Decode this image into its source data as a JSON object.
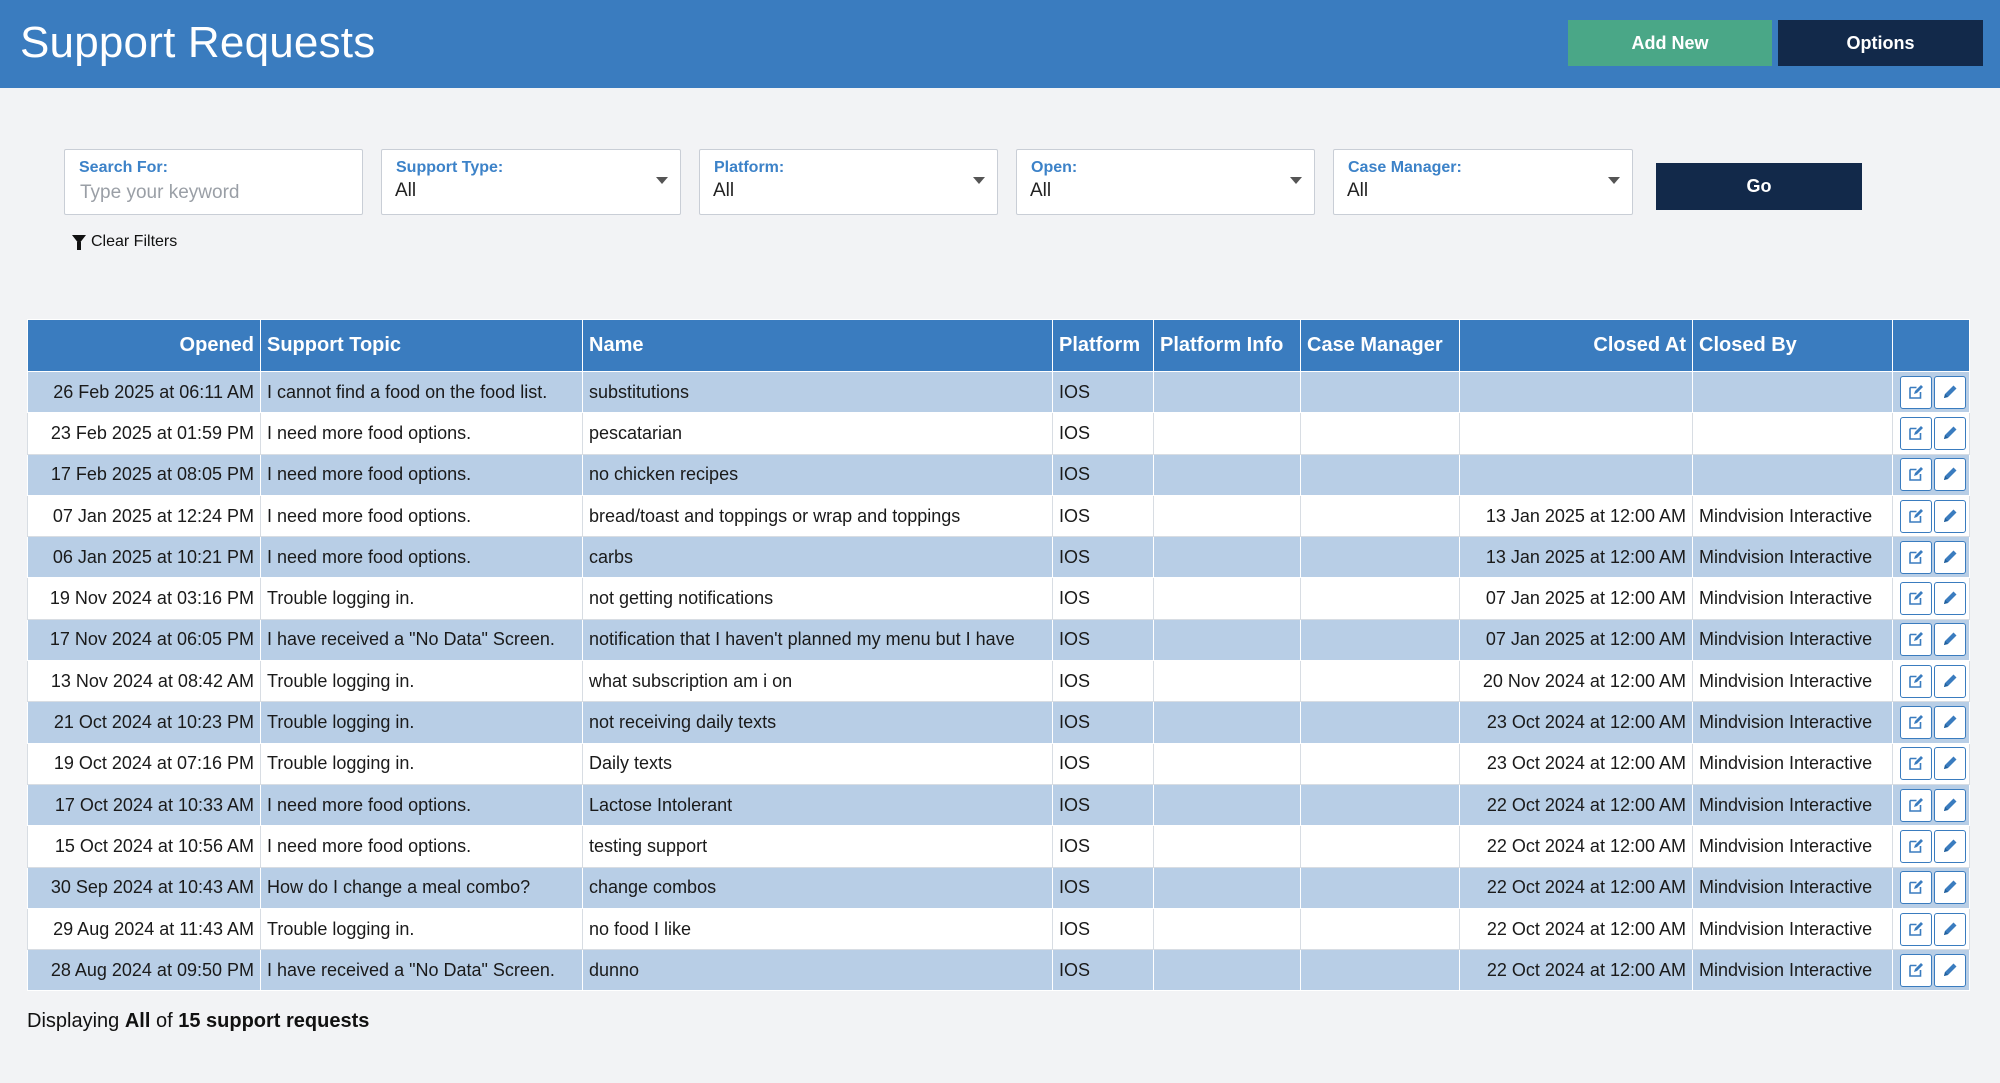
{
  "header": {
    "title": "Support Requests",
    "add_new_label": "Add New",
    "options_label": "Options",
    "colors": {
      "bar": "#3a7cbf",
      "add": "#4aa787",
      "options": "#12294a"
    }
  },
  "filters": {
    "search": {
      "label": "Search For:",
      "placeholder": "Type your keyword",
      "value": ""
    },
    "support_type": {
      "label": "Support Type:",
      "value": "All"
    },
    "platform": {
      "label": "Platform:",
      "value": "All"
    },
    "open": {
      "label": "Open:",
      "value": "All"
    },
    "case_manager": {
      "label": "Case Manager:",
      "value": "All"
    },
    "go_label": "Go",
    "clear_label": "Clear Filters"
  },
  "table": {
    "columns": [
      "Opened",
      "Support Topic",
      "Name",
      "Platform",
      "Platform Info",
      "Case Manager",
      "Closed At",
      "Closed By",
      ""
    ],
    "rows": [
      {
        "opened": "26 Feb 2025 at 06:11 AM",
        "topic": "I cannot find a food on the food list.",
        "name": "substitutions",
        "platform": "IOS",
        "platform_info": "",
        "case_manager": "",
        "closed_at": "",
        "closed_by": ""
      },
      {
        "opened": "23 Feb 2025 at 01:59 PM",
        "topic": "I need more food options.",
        "name": "pescatarian",
        "platform": "IOS",
        "platform_info": "",
        "case_manager": "",
        "closed_at": "",
        "closed_by": ""
      },
      {
        "opened": "17 Feb 2025 at 08:05 PM",
        "topic": "I need more food options.",
        "name": "no chicken recipes",
        "platform": "IOS",
        "platform_info": "",
        "case_manager": "",
        "closed_at": "",
        "closed_by": ""
      },
      {
        "opened": "07 Jan 2025 at 12:24 PM",
        "topic": "I need more food options.",
        "name": "bread/toast and toppings or wrap and toppings",
        "platform": "IOS",
        "platform_info": "",
        "case_manager": "",
        "closed_at": "13 Jan 2025 at 12:00 AM",
        "closed_by": "Mindvision Interactive"
      },
      {
        "opened": "06 Jan 2025 at 10:21 PM",
        "topic": "I need more food options.",
        "name": "carbs",
        "platform": "IOS",
        "platform_info": "",
        "case_manager": "",
        "closed_at": "13 Jan 2025 at 12:00 AM",
        "closed_by": "Mindvision Interactive"
      },
      {
        "opened": "19 Nov 2024 at 03:16 PM",
        "topic": "Trouble logging in.",
        "name": "not getting notifications",
        "platform": "IOS",
        "platform_info": "",
        "case_manager": "",
        "closed_at": "07 Jan 2025 at 12:00 AM",
        "closed_by": "Mindvision Interactive"
      },
      {
        "opened": "17 Nov 2024 at 06:05 PM",
        "topic": "I have received a \"No Data\" Screen.",
        "name": "notification that I haven't planned my menu but I have",
        "platform": "IOS",
        "platform_info": "",
        "case_manager": "",
        "closed_at": "07 Jan 2025 at 12:00 AM",
        "closed_by": "Mindvision Interactive"
      },
      {
        "opened": "13 Nov 2024 at 08:42 AM",
        "topic": "Trouble logging in.",
        "name": "what subscription am i on",
        "platform": "IOS",
        "platform_info": "",
        "case_manager": "",
        "closed_at": "20 Nov 2024 at 12:00 AM",
        "closed_by": "Mindvision Interactive"
      },
      {
        "opened": "21 Oct 2024 at 10:23 PM",
        "topic": "Trouble logging in.",
        "name": "not receiving daily texts",
        "platform": "IOS",
        "platform_info": "",
        "case_manager": "",
        "closed_at": "23 Oct 2024 at 12:00 AM",
        "closed_by": "Mindvision Interactive"
      },
      {
        "opened": "19 Oct 2024 at 07:16 PM",
        "topic": "Trouble logging in.",
        "name": "Daily texts",
        "platform": "IOS",
        "platform_info": "",
        "case_manager": "",
        "closed_at": "23 Oct 2024 at 12:00 AM",
        "closed_by": "Mindvision Interactive"
      },
      {
        "opened": "17 Oct 2024 at 10:33 AM",
        "topic": "I need more food options.",
        "name": "Lactose Intolerant",
        "platform": "IOS",
        "platform_info": "",
        "case_manager": "",
        "closed_at": "22 Oct 2024 at 12:00 AM",
        "closed_by": "Mindvision Interactive"
      },
      {
        "opened": "15 Oct 2024 at 10:56 AM",
        "topic": "I need more food options.",
        "name": "testing support",
        "platform": "IOS",
        "platform_info": "",
        "case_manager": "",
        "closed_at": "22 Oct 2024 at 12:00 AM",
        "closed_by": "Mindvision Interactive"
      },
      {
        "opened": "30 Sep 2024 at 10:43 AM",
        "topic": "How do I change a meal combo?",
        "name": "change combos",
        "platform": "IOS",
        "platform_info": "",
        "case_manager": "",
        "closed_at": "22 Oct 2024 at 12:00 AM",
        "closed_by": "Mindvision Interactive"
      },
      {
        "opened": "29 Aug 2024 at 11:43 AM",
        "topic": "Trouble logging in.",
        "name": "no food I like",
        "platform": "IOS",
        "platform_info": "",
        "case_manager": "",
        "closed_at": "22 Oct 2024 at 12:00 AM",
        "closed_by": "Mindvision Interactive"
      },
      {
        "opened": "28 Aug 2024 at 09:50 PM",
        "topic": "I have received a \"No Data\" Screen.",
        "name": "dunno",
        "platform": "IOS",
        "platform_info": "",
        "case_manager": "",
        "closed_at": "22 Oct 2024 at 12:00 AM",
        "closed_by": "Mindvision Interactive"
      }
    ],
    "row_actions": [
      "edit-square-icon",
      "pencil-icon"
    ]
  },
  "footer": {
    "prefix": "Displaying",
    "scope": "All",
    "middle": "of",
    "count_text": "15 support requests"
  }
}
